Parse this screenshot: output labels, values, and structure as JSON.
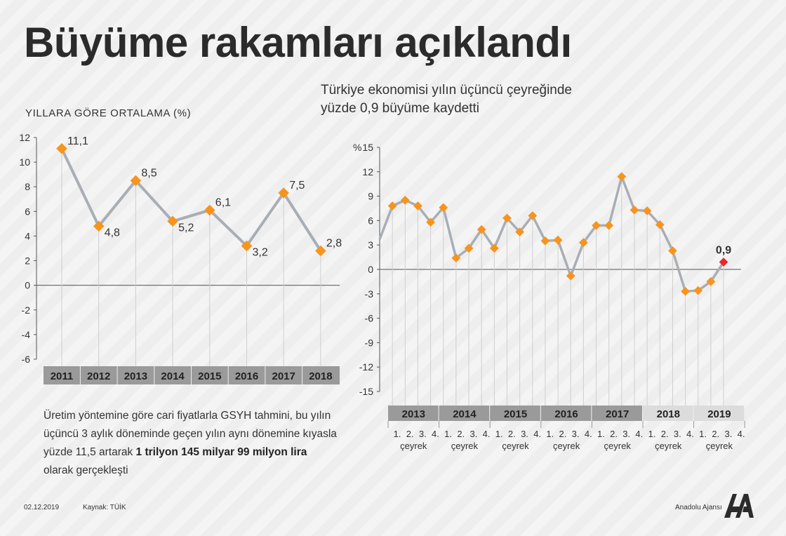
{
  "header": {
    "title": "Büyüme rakamları açıklandı",
    "subtitle_line1": "Türkiye ekonomisi yılın üçüncü çeyreğinde",
    "subtitle_line2": "yüzde 0,9 büyüme kaydetti",
    "left_subtitle": "YILLARA GÖRE ORTALAMA (%)"
  },
  "description": {
    "part1": "Üretim yöntemine göre cari fiyatlarla GSYH tahmini, bu yılın üçüncü 3 aylık döneminde geçen yılın aynı dönemine kıyasla yüzde 11,5 artarak ",
    "bold": "1 trilyon 145 milyar 99 milyon lira",
    "part2": " olarak gerçekleşti"
  },
  "footer": {
    "date": "02.12.2019",
    "source": "Kaynak: TÜİK",
    "agency": "Anadolu Ajansı"
  },
  "colors": {
    "line": "#a9aeb5",
    "marker": "#f7941d",
    "highlight": "#e8262b",
    "year_dark": "#9a9a9a",
    "year_light": "#dcdcdc"
  },
  "chart_data": [
    {
      "type": "line",
      "title": "YILLARA GÖRE ORTALAMA (%)",
      "categories": [
        "2011",
        "2012",
        "2013",
        "2014",
        "2015",
        "2016",
        "2017",
        "2018"
      ],
      "values": [
        11.1,
        4.8,
        8.5,
        5.2,
        6.1,
        3.2,
        7.5,
        2.8
      ],
      "labels": [
        "11,1",
        "4,8",
        "8,5",
        "5,2",
        "6,1",
        "3,2",
        "7,5",
        "2,8"
      ],
      "yticks": [
        "12",
        "10",
        "8",
        "6",
        "4",
        "2",
        "0",
        "-2",
        "-4",
        "-6"
      ],
      "ylim": [
        -6,
        12
      ],
      "grid": false
    },
    {
      "type": "line",
      "title": "Türkiye ekonomisi yılın üçüncü çeyreğinde yüzde 0,9 büyüme kaydetti",
      "ylabel": "%",
      "years": [
        "2013",
        "2014",
        "2015",
        "2016",
        "2017",
        "2018",
        "2019"
      ],
      "quarter_labels": [
        "1.",
        "2.",
        "3.",
        "4."
      ],
      "quarter_caption": "çeyrek",
      "values": [
        3.7,
        7.8,
        8.5,
        7.8,
        5.8,
        7.6,
        1.4,
        2.6,
        4.9,
        2.6,
        6.3,
        4.6,
        6.6,
        3.5,
        3.6,
        -0.8,
        3.3,
        5.4,
        5.4,
        11.4,
        7.3,
        7.2,
        5.5,
        2.3,
        -2.7,
        -2.6,
        -1.5,
        0.9
      ],
      "last_value_label": "0,9",
      "yticks": [
        "15",
        "12",
        "9",
        "6",
        "3",
        "0",
        "-3",
        "-6",
        "-9",
        "-12",
        "-15"
      ],
      "ylim": [
        -15,
        15
      ],
      "grid": false
    }
  ]
}
